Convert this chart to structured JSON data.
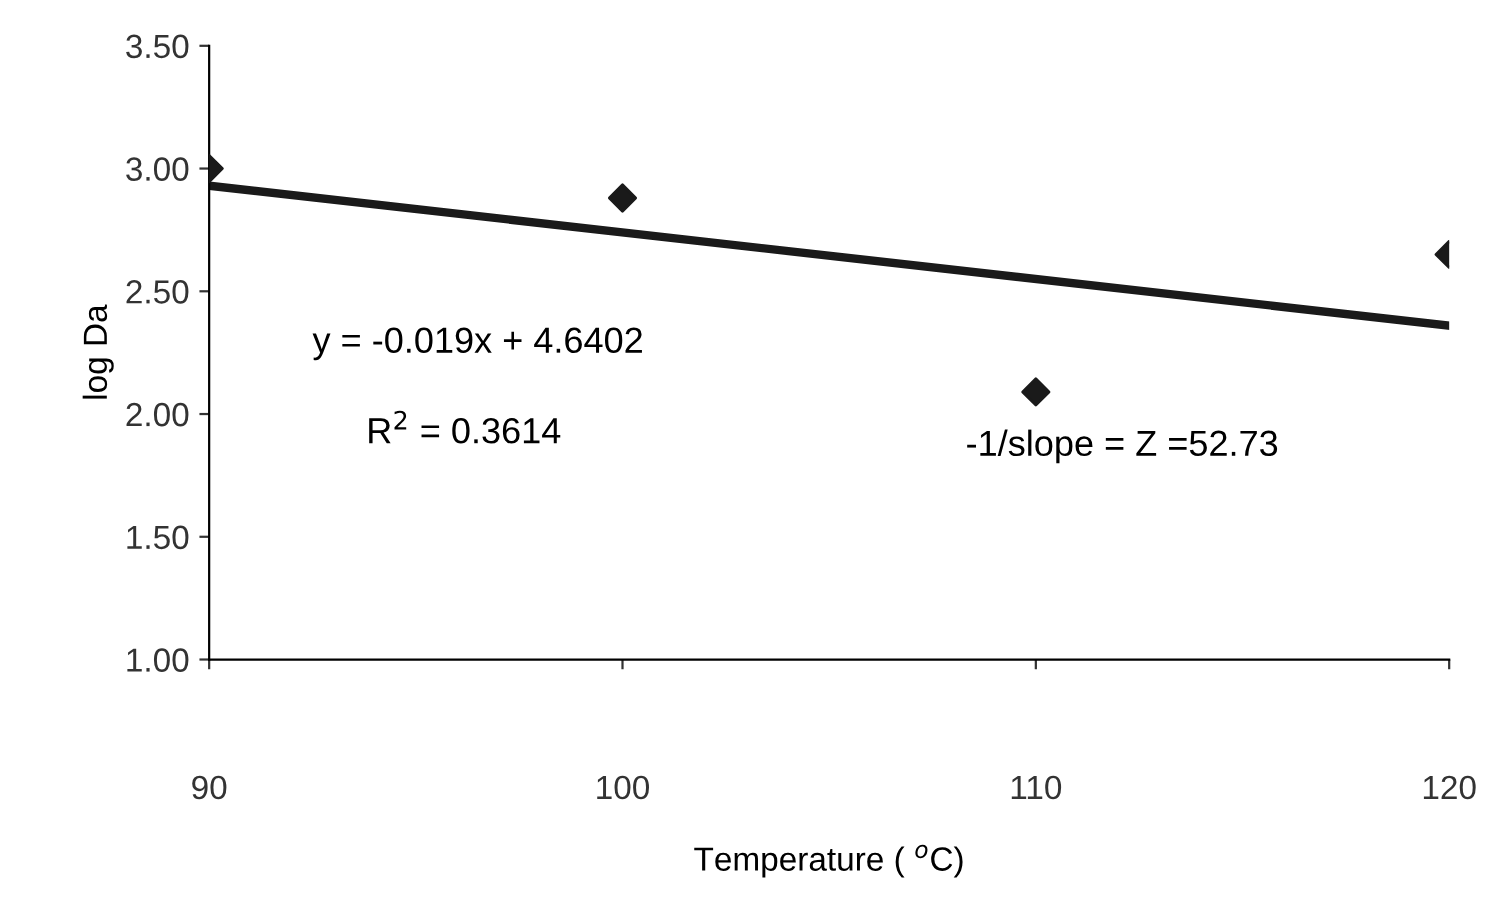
{
  "chart_data": {
    "type": "scatter",
    "xlabel": "Temperature ( $^{o}$C)",
    "ylabel": "log Da",
    "series": [
      {
        "color": "#1a1a1a",
        "marker": "diamond",
        "x": [
          90,
          100,
          110,
          120
        ],
        "values": [
          3.0,
          2.88,
          2.09,
          2.65
        ]
      },
      {
        "type": "line",
        "color": "#1a1a1a",
        "marker": "none",
        "line_style": "solid",
        "x": [
          90,
          120
        ],
        "values": [
          2.93,
          2.36
        ]
      }
    ],
    "xlim": [
      90,
      120
    ],
    "xticks": [
      90,
      100,
      110,
      120
    ],
    "ylim": [
      1.0,
      3.5
    ],
    "yticks": [
      {
        "value": 1.0,
        "label": "1.00"
      },
      {
        "value": 1.5,
        "label": "1.50"
      },
      {
        "value": 2.0,
        "label": "2.00"
      },
      {
        "value": 2.5,
        "label": "2.50"
      },
      {
        "value": 3.0,
        "label": "3.00"
      },
      {
        "value": 3.5,
        "label": "3.50"
      }
    ],
    "grid": false,
    "legend": false,
    "annotations": [
      "y = -0.019x + 4.6402",
      "R$^{2}$ = 0.3614",
      "-1/slope = Z =52.73"
    ]
  }
}
